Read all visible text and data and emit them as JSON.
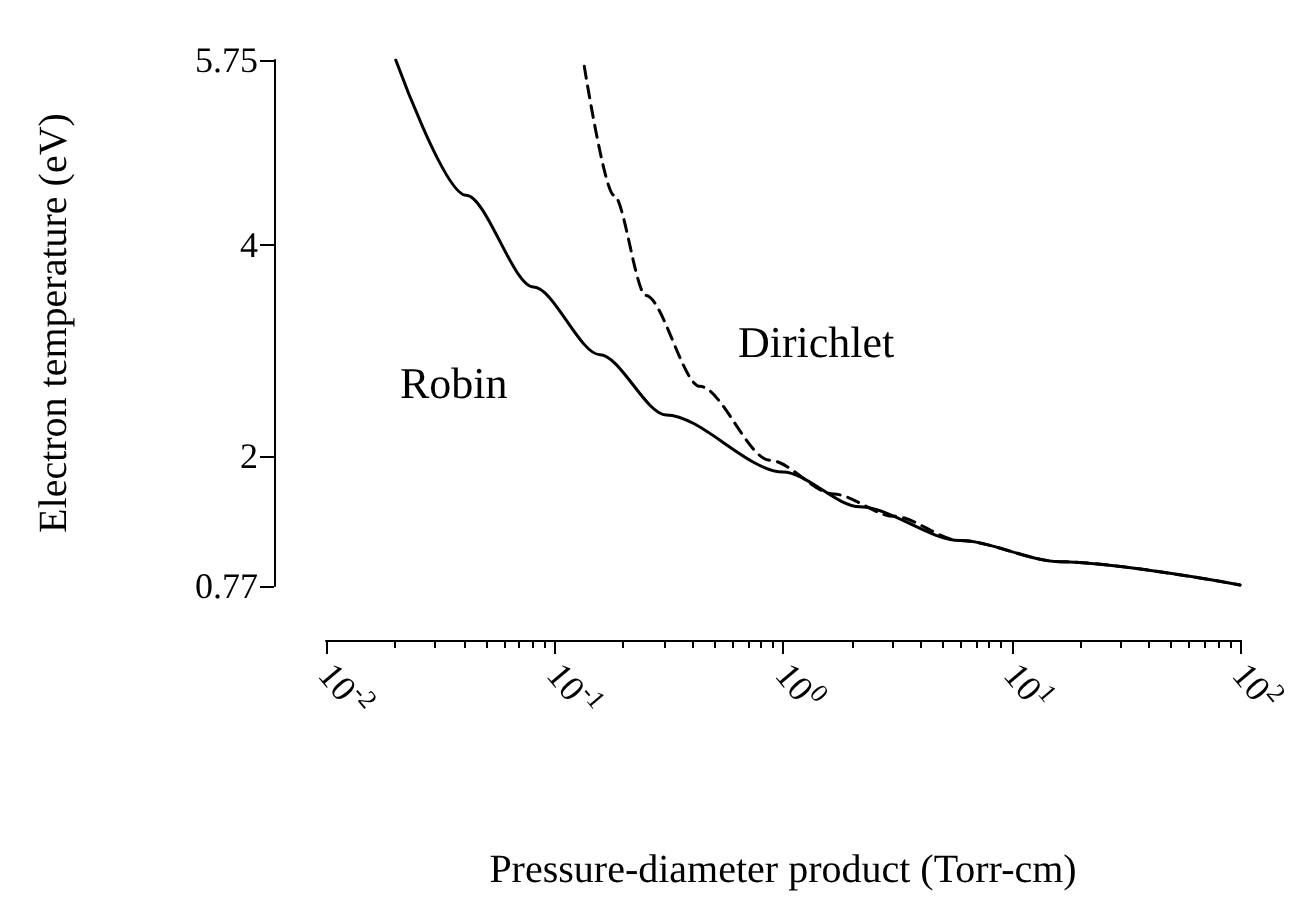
{
  "chart_data": {
    "type": "line",
    "xlabel": "Pressure-diameter product (Torr-cm)",
    "ylabel": "Electron temperature (eV)",
    "log": "x",
    "xlim": [
      0.01,
      100
    ],
    "ylim": [
      0.77,
      5.75
    ],
    "xticks": [
      {
        "value": 0.01,
        "label": "10$^{-2}$"
      },
      {
        "value": 0.1,
        "label": "10$^{-1}$"
      },
      {
        "value": 1,
        "label": "10$^{0}$"
      },
      {
        "value": 10,
        "label": "10$^{1}$"
      },
      {
        "value": 100,
        "label": "10$^{2}$"
      }
    ],
    "yticks": [
      0.77,
      2,
      4,
      5.75
    ],
    "grid": false,
    "legend": false,
    "marker": "none",
    "series": [
      {
        "name": "Robin",
        "color": "#000000",
        "line_style": "solid",
        "x": [
          0.0202,
          0.041,
          0.081,
          0.158,
          0.308,
          1,
          2.17,
          5.96,
          16.3,
          100
        ],
        "values": [
          5.75,
          4.47,
          3.6,
          2.96,
          2.39,
          1.85,
          1.52,
          1.2,
          1.0,
          0.78
        ]
      },
      {
        "name": "Dirichlet",
        "color": "#000000",
        "line_style": "dashed",
        "x": [
          0.135,
          0.182,
          0.251,
          0.433,
          0.877,
          1.67,
          3.06,
          5.96,
          16.3,
          100
        ],
        "values": [
          5.69,
          4.47,
          3.52,
          2.66,
          1.96,
          1.64,
          1.43,
          1.2,
          1.0,
          0.78
        ]
      }
    ]
  }
}
